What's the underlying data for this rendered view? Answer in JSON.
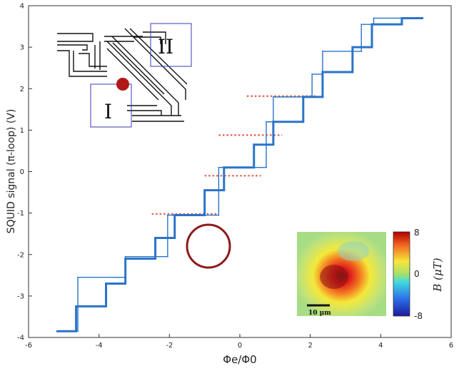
{
  "chart_data": {
    "type": "line",
    "title": "",
    "xlabel": "Φe/Φ0",
    "ylabel": "SQUID signal (π-loop) (V)",
    "xlim": [
      -6,
      6
    ],
    "ylim": [
      -4,
      4
    ],
    "xticks": [
      "-6",
      "-4",
      "-2",
      "0",
      "2",
      "4",
      "6"
    ],
    "yticks": [
      "-4",
      "-3",
      "-2",
      "-1",
      "0",
      "1",
      "2",
      "3",
      "4"
    ],
    "grid": false,
    "legend": "none",
    "series": [
      {
        "color": "#2a73c9",
        "x": [
          -5.2,
          -4.65,
          -4.65,
          -3.8,
          -3.8,
          -3.25,
          -3.25,
          -2.4,
          -2.4,
          -1.85,
          -1.85,
          -1.0,
          -1.0,
          -0.45,
          -0.45,
          0.4,
          0.4,
          0.95,
          0.95,
          1.8,
          1.8,
          2.35,
          2.35,
          3.2,
          3.2,
          3.75,
          3.75,
          4.6,
          4.6,
          5.2
        ],
        "y": [
          -3.85,
          -3.85,
          -3.25,
          -3.25,
          -2.7,
          -2.7,
          -2.1,
          -2.1,
          -1.6,
          -1.6,
          -1.05,
          -1.05,
          -0.45,
          -0.45,
          0.1,
          0.1,
          0.65,
          0.65,
          1.2,
          1.2,
          1.8,
          1.8,
          2.4,
          2.4,
          3.0,
          3.0,
          3.55,
          3.55,
          3.7,
          3.7
        ]
      },
      {
        "color": "#2a73c9",
        "x": [
          -5.2,
          -4.6,
          -4.6,
          -3.45,
          -3.45,
          -3.25,
          -3.25,
          -2.05,
          -2.05,
          -1.9,
          -1.9,
          -0.6,
          -0.6,
          -0.5,
          -0.5,
          0.75,
          0.75,
          0.95,
          0.95,
          2.05,
          2.05,
          2.35,
          2.35,
          3.45,
          3.45,
          3.8,
          3.8,
          4.6
        ],
        "y": [
          -3.85,
          -3.85,
          -2.55,
          -2.55,
          -2.55,
          -2.55,
          -2.05,
          -2.05,
          -1.05,
          -1.05,
          -1.05,
          -1.05,
          0.1,
          0.1,
          0.1,
          0.1,
          1.2,
          1.2,
          1.8,
          1.8,
          2.35,
          2.35,
          2.9,
          2.9,
          3.55,
          3.55,
          3.7,
          3.7
        ]
      }
    ],
    "dashed_levels": {
      "color": "#e05a4a",
      "segments": [
        {
          "x": [
            -2.5,
            -0.6
          ],
          "y": -1.02
        },
        {
          "x": [
            -1.0,
            0.6
          ],
          "y": -0.1
        },
        {
          "x": [
            -0.6,
            1.2
          ],
          "y": 0.88
        },
        {
          "x": [
            0.2,
            2.2
          ],
          "y": 1.82
        }
      ]
    },
    "annotations": [
      "I",
      "II",
      "10 μm"
    ],
    "colorbar": {
      "label": "B (μT)",
      "ticks": [
        "8",
        "0",
        "-8"
      ],
      "range": [
        -8,
        8
      ]
    }
  }
}
